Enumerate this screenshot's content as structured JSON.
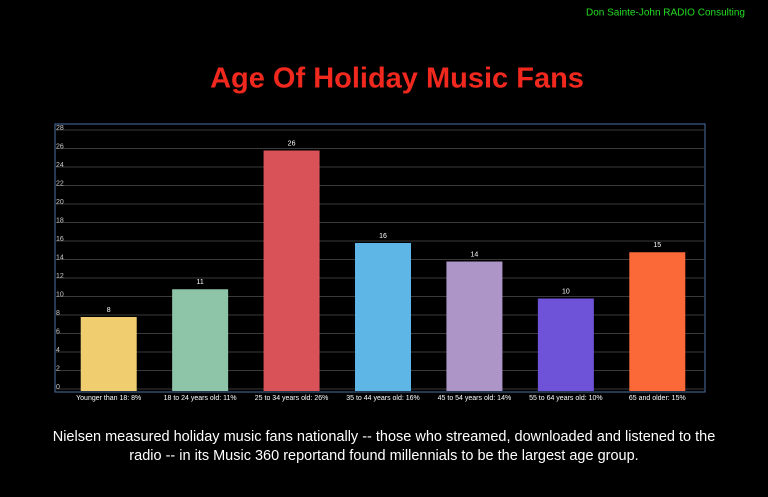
{
  "chart_data": {
    "type": "bar",
    "source": "Don Sainte-John RADIO Consulting",
    "title": "Age Of Holiday Music Fans",
    "categories": [
      "Younger than 18: 8%",
      "18 to 24 years old: 11%",
      "25 to 34 years old: 26%",
      "35 to 44 years old: 16%",
      "45 to 54 years old: 14%",
      "55 to 64 years old: 10%",
      "65 and older: 15%"
    ],
    "values": [
      8,
      11,
      26,
      16,
      14,
      10,
      15
    ],
    "colors": [
      "#f0cd6e",
      "#8ec4a8",
      "#d95257",
      "#5db6e5",
      "#ad95c8",
      "#6e52d8",
      "#fb6939"
    ],
    "ylim": [
      0,
      28
    ],
    "yticks": [
      0,
      2,
      4,
      6,
      8,
      10,
      12,
      14,
      16,
      18,
      20,
      22,
      24,
      26,
      28
    ],
    "grid": true,
    "caption": "Nielsen measured holiday music fans nationally -- those who streamed, downloaded and listened to the radio -- in its Music 360 reportand found millennials to be the largest age group."
  }
}
